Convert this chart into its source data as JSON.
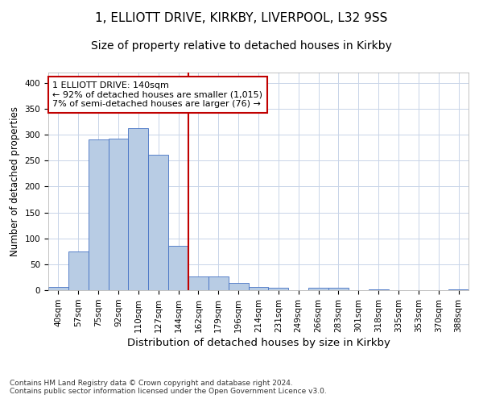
{
  "title1": "1, ELLIOTT DRIVE, KIRKBY, LIVERPOOL, L32 9SS",
  "title2": "Size of property relative to detached houses in Kirkby",
  "xlabel": "Distribution of detached houses by size in Kirkby",
  "ylabel": "Number of detached properties",
  "footnote": "Contains HM Land Registry data © Crown copyright and database right 2024.\nContains public sector information licensed under the Open Government Licence v3.0.",
  "categories": [
    "40sqm",
    "57sqm",
    "75sqm",
    "92sqm",
    "110sqm",
    "127sqm",
    "144sqm",
    "162sqm",
    "179sqm",
    "196sqm",
    "214sqm",
    "231sqm",
    "249sqm",
    "266sqm",
    "283sqm",
    "301sqm",
    "318sqm",
    "335sqm",
    "353sqm",
    "370sqm",
    "388sqm"
  ],
  "values": [
    7,
    75,
    291,
    293,
    312,
    262,
    86,
    27,
    27,
    14,
    7,
    5,
    0,
    4,
    4,
    0,
    2,
    0,
    0,
    0,
    2
  ],
  "bar_color": "#b8cce4",
  "bar_edge_color": "#4472c4",
  "highlight_line_color": "#c00000",
  "annotation_text": "1 ELLIOTT DRIVE: 140sqm\n← 92% of detached houses are smaller (1,015)\n7% of semi-detached houses are larger (76) →",
  "annotation_box_edge": "#c00000",
  "ylim": [
    0,
    420
  ],
  "yticks": [
    0,
    50,
    100,
    150,
    200,
    250,
    300,
    350,
    400
  ],
  "grid_color": "#c8d4e8",
  "title1_fontsize": 11,
  "title2_fontsize": 10,
  "xlabel_fontsize": 9.5,
  "ylabel_fontsize": 8.5,
  "tick_fontsize": 7.5,
  "annotation_fontsize": 8
}
